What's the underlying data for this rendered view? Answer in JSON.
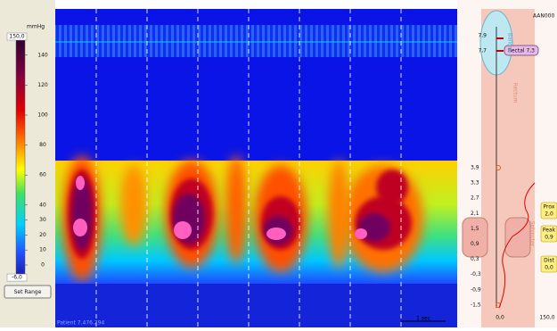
{
  "colorbar": {
    "unit": "mmHg",
    "max": {
      "value": 150,
      "label": "150,0"
    },
    "min": {
      "value": -6,
      "label": "-6,0"
    },
    "ticks": [
      140,
      120,
      100,
      80,
      60,
      40,
      30,
      20,
      10,
      0
    ]
  },
  "buttons": {
    "set_range": "Set Range"
  },
  "plot": {
    "patient": "Patient 7.476.294",
    "scale": "1 sec"
  },
  "side": {
    "id": "AAN000",
    "balloon": "Balloon",
    "rectum": "Rectum",
    "sphincter": "Sphincter",
    "balloon_depths": [
      "7,9",
      "7,7"
    ],
    "rectal": "Rectal 7,3",
    "depths": [
      "3,9",
      "3,3",
      "2,7",
      "2,1",
      "1,5",
      "0,9",
      "0,3",
      "-0,3",
      "-0,9",
      "-1,5"
    ],
    "prox": [
      "Prox",
      "2,0"
    ],
    "peak": [
      "Peak",
      "0,9"
    ],
    "dist": [
      "Dist",
      "0,0"
    ],
    "x_axis": [
      "0,0",
      "150,0"
    ]
  }
}
